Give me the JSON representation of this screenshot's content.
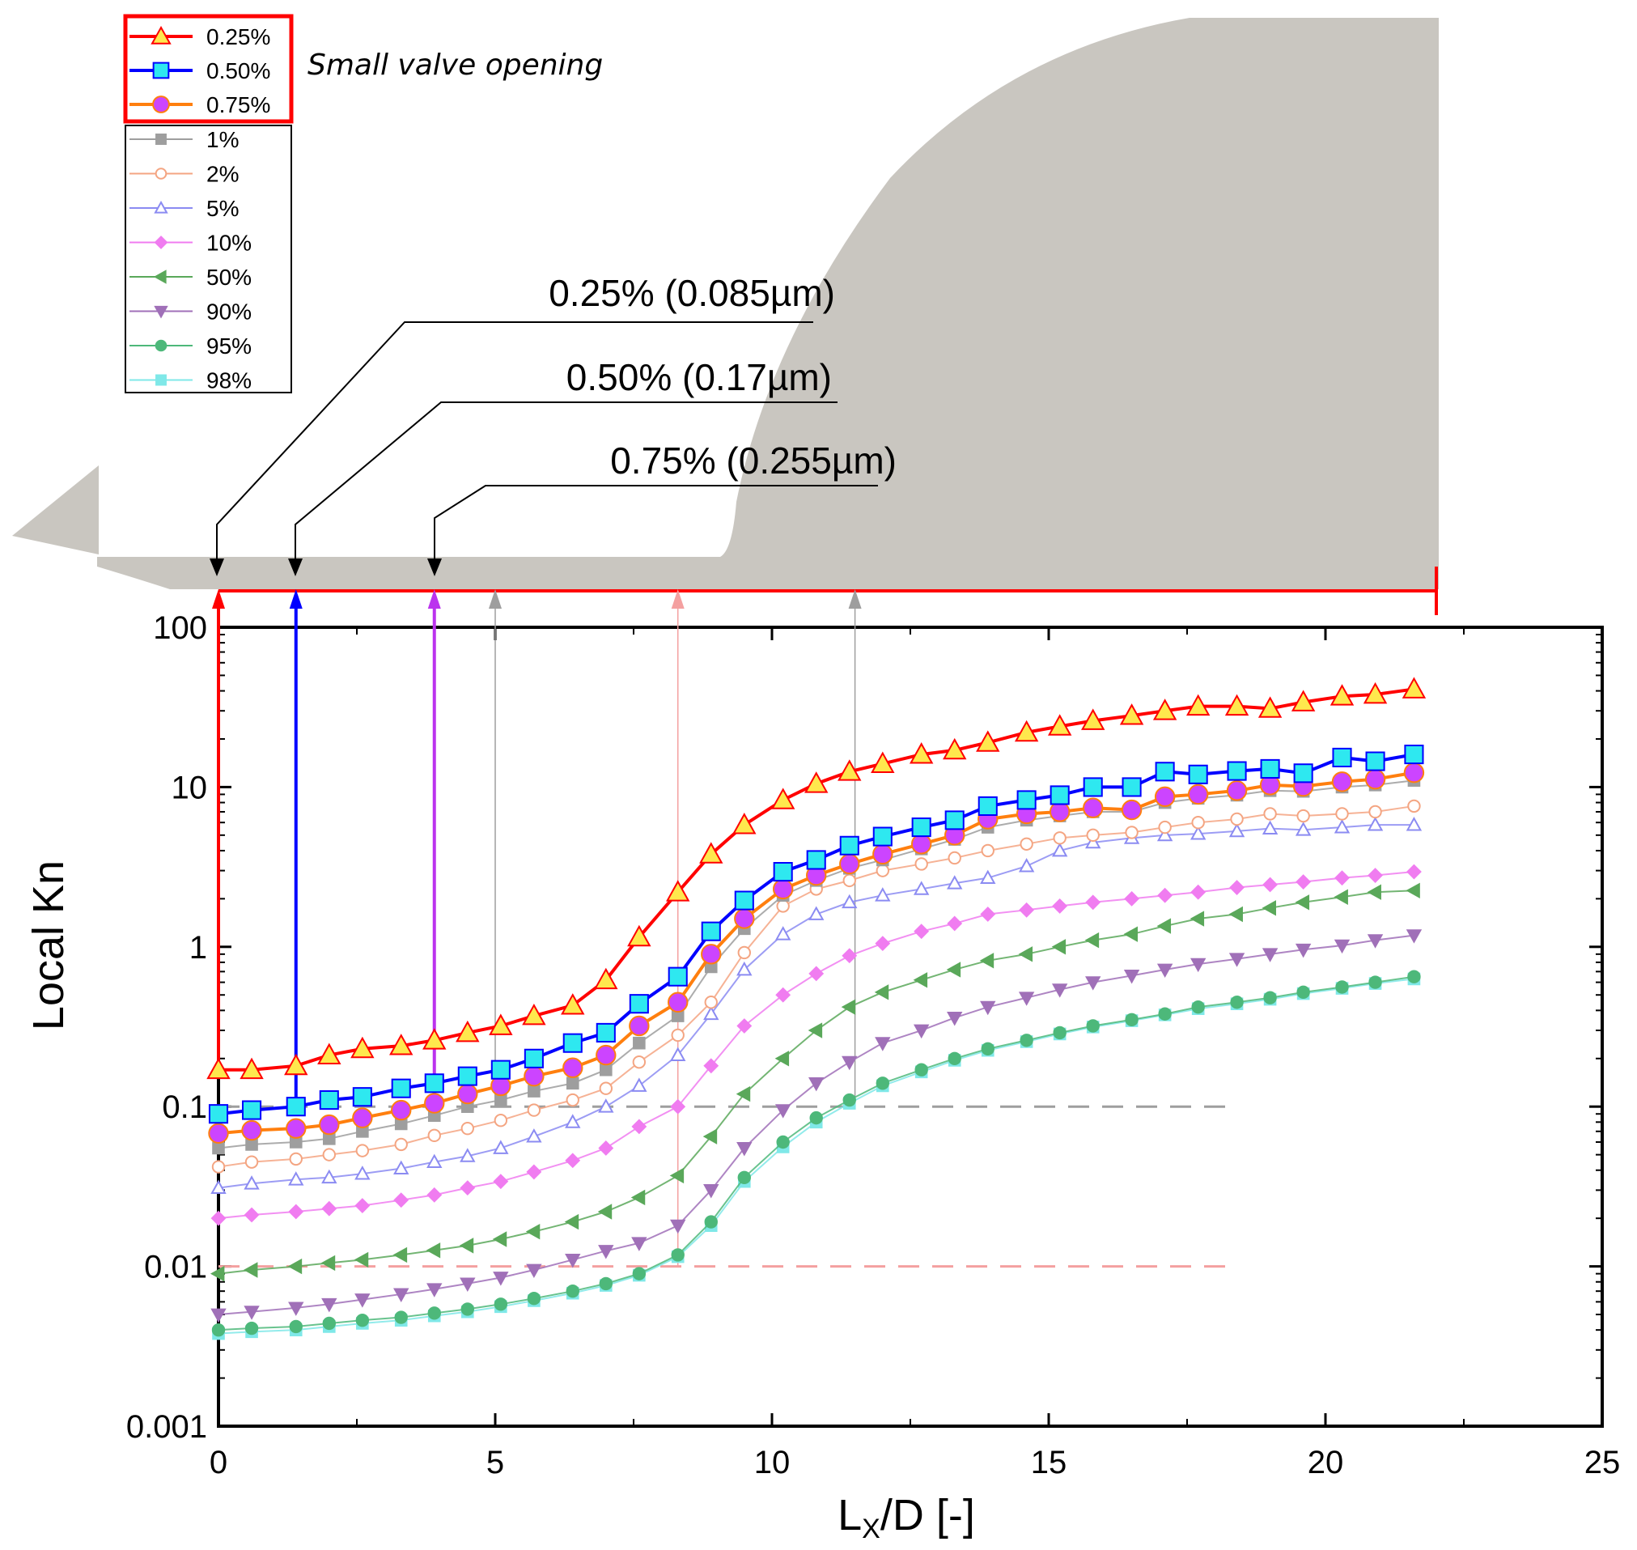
{
  "chart_data": {
    "type": "line",
    "title": "",
    "xlabel": "L",
    "xlabel_sub": "X",
    "xlabel_tail": "/D [-]",
    "ylabel": "Local Kn",
    "xlim": [
      0,
      25
    ],
    "ylim": [
      0.001,
      100
    ],
    "yscale": "log",
    "x_ticks": [
      "0",
      "5",
      "10",
      "15",
      "20",
      "25"
    ],
    "y_ticks": [
      "0.001",
      "0.01",
      "0.1",
      "1",
      "10",
      "100"
    ],
    "legend_position": "top-left",
    "annotation_note": "Small valve opening",
    "callouts": [
      {
        "label": "0.25% (0.085µm)",
        "x": 0.0
      },
      {
        "label": "0.50% (0.17µm)",
        "x": 1.4
      },
      {
        "label": "0.75% (0.255µm)",
        "x": 3.9
      }
    ],
    "threshold_lines": [
      {
        "y": 0.1,
        "x_range": [
          0,
          18.3
        ],
        "color": "#9e9e9e"
      },
      {
        "y": 0.01,
        "x_range": [
          0,
          18.3
        ],
        "color": "#f4a0a0"
      }
    ],
    "markers_x": [
      0,
      1.4,
      3.9,
      5.0,
      8.3,
      11.5
    ],
    "x_domain_end": 21.9,
    "series": [
      {
        "name": "0.25%",
        "color": "#ff0000",
        "fill": "#ffe84d",
        "marker": "triangle",
        "width": 4,
        "highlight": true,
        "x": [
          0,
          0.6,
          1.4,
          2,
          2.6,
          3.3,
          3.9,
          4.5,
          5.1,
          5.7,
          6.4,
          7,
          7.6,
          8.3,
          8.9,
          9.5,
          10.2,
          10.8,
          11.4,
          12,
          12.7,
          13.3,
          13.9,
          14.6,
          15.2,
          15.8,
          16.5,
          17.1,
          17.7,
          18.4,
          19,
          19.6,
          20.3,
          20.9,
          21.6
        ],
        "y": [
          0.17,
          0.17,
          0.18,
          0.21,
          0.23,
          0.24,
          0.26,
          0.29,
          0.32,
          0.37,
          0.43,
          0.62,
          1.15,
          2.2,
          3.8,
          5.8,
          8.3,
          10.5,
          12.5,
          14,
          16,
          17,
          19,
          22,
          24,
          26,
          28,
          30,
          32,
          32,
          31,
          34,
          37,
          38,
          41
        ]
      },
      {
        "name": "0.50%",
        "color": "#0000ff",
        "fill": "#2ee8f0",
        "marker": "square",
        "width": 4,
        "highlight": true,
        "x": [
          0,
          0.6,
          1.4,
          2,
          2.6,
          3.3,
          3.9,
          4.5,
          5.1,
          5.7,
          6.4,
          7,
          7.6,
          8.3,
          8.9,
          9.5,
          10.2,
          10.8,
          11.4,
          12,
          12.7,
          13.3,
          13.9,
          14.6,
          15.2,
          15.8,
          16.5,
          17.1,
          17.7,
          18.4,
          19,
          19.6,
          20.3,
          20.9,
          21.6
        ],
        "y": [
          0.09,
          0.095,
          0.1,
          0.11,
          0.115,
          0.13,
          0.14,
          0.155,
          0.17,
          0.2,
          0.25,
          0.29,
          0.44,
          0.65,
          1.25,
          1.95,
          2.95,
          3.5,
          4.3,
          4.9,
          5.6,
          6.2,
          7.6,
          8.3,
          8.9,
          10,
          10,
          12.5,
          12,
          12.6,
          13,
          12.2,
          15.3,
          14.5,
          16
        ]
      },
      {
        "name": "0.75%",
        "color": "#ff7f0e",
        "fill": "#cc44ff",
        "marker": "circle",
        "width": 4,
        "highlight": true,
        "x": [
          0,
          0.6,
          1.4,
          2,
          2.6,
          3.3,
          3.9,
          4.5,
          5.1,
          5.7,
          6.4,
          7,
          7.6,
          8.3,
          8.9,
          9.5,
          10.2,
          10.8,
          11.4,
          12,
          12.7,
          13.3,
          13.9,
          14.6,
          15.2,
          15.8,
          16.5,
          17.1,
          17.7,
          18.4,
          19,
          19.6,
          20.3,
          20.9,
          21.6
        ],
        "y": [
          0.068,
          0.071,
          0.073,
          0.077,
          0.085,
          0.095,
          0.105,
          0.12,
          0.135,
          0.155,
          0.175,
          0.21,
          0.32,
          0.45,
          0.9,
          1.5,
          2.3,
          2.8,
          3.3,
          3.8,
          4.4,
          5,
          6.3,
          6.8,
          7,
          7.4,
          7.2,
          8.7,
          9,
          9.5,
          10.3,
          10.1,
          10.8,
          11.2,
          12.3
        ]
      },
      {
        "name": "1%",
        "color": "#9e9e9e",
        "fill": "#9e9e9e",
        "marker": "square",
        "width": 2,
        "highlight": false,
        "x": [
          0,
          0.6,
          1.4,
          2,
          2.6,
          3.3,
          3.9,
          4.5,
          5.1,
          5.7,
          6.4,
          7,
          7.6,
          8.3,
          8.9,
          9.5,
          10.2,
          10.8,
          11.4,
          12,
          12.7,
          13.3,
          13.9,
          14.6,
          15.2,
          15.8,
          16.5,
          17.1,
          17.7,
          18.4,
          19,
          19.6,
          20.3,
          20.9,
          21.6
        ],
        "y": [
          0.055,
          0.058,
          0.06,
          0.063,
          0.07,
          0.078,
          0.088,
          0.1,
          0.11,
          0.125,
          0.14,
          0.17,
          0.25,
          0.37,
          0.75,
          1.3,
          2.1,
          2.6,
          3.1,
          3.5,
          4.1,
          4.7,
          5.6,
          6.2,
          6.6,
          7,
          7,
          8,
          8.5,
          8.9,
          9.5,
          9.4,
          10,
          10.3,
          11
        ]
      },
      {
        "name": "2%",
        "color": "#f4a582",
        "fill": "#ffffff",
        "marker": "circle-open",
        "width": 2,
        "highlight": false,
        "x": [
          0,
          0.6,
          1.4,
          2,
          2.6,
          3.3,
          3.9,
          4.5,
          5.1,
          5.7,
          6.4,
          7,
          7.6,
          8.3,
          8.9,
          9.5,
          10.2,
          10.8,
          11.4,
          12,
          12.7,
          13.3,
          13.9,
          14.6,
          15.2,
          15.8,
          16.5,
          17.1,
          17.7,
          18.4,
          19,
          19.6,
          20.3,
          20.9,
          21.6
        ],
        "y": [
          0.042,
          0.045,
          0.047,
          0.05,
          0.053,
          0.058,
          0.066,
          0.073,
          0.082,
          0.095,
          0.11,
          0.13,
          0.19,
          0.28,
          0.45,
          0.92,
          1.8,
          2.3,
          2.6,
          3,
          3.3,
          3.6,
          4,
          4.4,
          4.8,
          5,
          5.2,
          5.6,
          6,
          6.3,
          6.8,
          6.6,
          6.8,
          7,
          7.6
        ]
      },
      {
        "name": "5%",
        "color": "#8b8bf2",
        "fill": "#ffffff",
        "marker": "triangle-open",
        "width": 2,
        "highlight": false,
        "x": [
          0,
          0.6,
          1.4,
          2,
          2.6,
          3.3,
          3.9,
          4.5,
          5.1,
          5.7,
          6.4,
          7,
          7.6,
          8.3,
          8.9,
          9.5,
          10.2,
          10.8,
          11.4,
          12,
          12.7,
          13.3,
          13.9,
          14.6,
          15.2,
          15.8,
          16.5,
          17.1,
          17.7,
          18.4,
          19,
          19.6,
          20.3,
          20.9,
          21.6
        ],
        "y": [
          0.031,
          0.033,
          0.035,
          0.036,
          0.038,
          0.041,
          0.045,
          0.049,
          0.055,
          0.065,
          0.08,
          0.1,
          0.135,
          0.21,
          0.38,
          0.72,
          1.2,
          1.6,
          1.9,
          2.1,
          2.3,
          2.5,
          2.7,
          3.2,
          4,
          4.5,
          4.8,
          5,
          5.1,
          5.3,
          5.5,
          5.4,
          5.6,
          5.8,
          5.8
        ]
      },
      {
        "name": "10%",
        "color": "#f07cf0",
        "fill": "#f07cf0",
        "marker": "diamond",
        "width": 2,
        "highlight": false,
        "x": [
          0,
          0.6,
          1.4,
          2,
          2.6,
          3.3,
          3.9,
          4.5,
          5.1,
          5.7,
          6.4,
          7,
          7.6,
          8.3,
          8.9,
          9.5,
          10.2,
          10.8,
          11.4,
          12,
          12.7,
          13.3,
          13.9,
          14.6,
          15.2,
          15.8,
          16.5,
          17.1,
          17.7,
          18.4,
          19,
          19.6,
          20.3,
          20.9,
          21.6
        ],
        "y": [
          0.02,
          0.021,
          0.022,
          0.023,
          0.024,
          0.026,
          0.028,
          0.031,
          0.034,
          0.039,
          0.046,
          0.055,
          0.075,
          0.1,
          0.18,
          0.32,
          0.5,
          0.68,
          0.88,
          1.05,
          1.25,
          1.4,
          1.6,
          1.7,
          1.8,
          1.9,
          2,
          2.1,
          2.2,
          2.35,
          2.45,
          2.55,
          2.7,
          2.8,
          2.95
        ]
      },
      {
        "name": "50%",
        "color": "#5aa85a",
        "fill": "#5aa85a",
        "marker": "triangle-left",
        "width": 2,
        "highlight": false,
        "x": [
          0,
          0.6,
          1.4,
          2,
          2.6,
          3.3,
          3.9,
          4.5,
          5.1,
          5.7,
          6.4,
          7,
          7.6,
          8.3,
          8.9,
          9.5,
          10.2,
          10.8,
          11.4,
          12,
          12.7,
          13.3,
          13.9,
          14.6,
          15.2,
          15.8,
          16.5,
          17.1,
          17.7,
          18.4,
          19,
          19.6,
          20.3,
          20.9,
          21.6
        ],
        "y": [
          0.009,
          0.0095,
          0.01,
          0.0105,
          0.011,
          0.0118,
          0.0126,
          0.0135,
          0.0148,
          0.0165,
          0.019,
          0.022,
          0.027,
          0.037,
          0.065,
          0.12,
          0.2,
          0.3,
          0.42,
          0.52,
          0.62,
          0.72,
          0.82,
          0.9,
          1,
          1.1,
          1.2,
          1.35,
          1.5,
          1.6,
          1.75,
          1.9,
          2.05,
          2.2,
          2.25
        ]
      },
      {
        "name": "90%",
        "color": "#a070b8",
        "fill": "#a070b8",
        "marker": "triangle-down",
        "width": 2,
        "highlight": false,
        "x": [
          0,
          0.6,
          1.4,
          2,
          2.6,
          3.3,
          3.9,
          4.5,
          5.1,
          5.7,
          6.4,
          7,
          7.6,
          8.3,
          8.9,
          9.5,
          10.2,
          10.8,
          11.4,
          12,
          12.7,
          13.3,
          13.9,
          14.6,
          15.2,
          15.8,
          16.5,
          17.1,
          17.7,
          18.4,
          19,
          19.6,
          20.3,
          20.9,
          21.6
        ],
        "y": [
          0.005,
          0.0052,
          0.0055,
          0.0058,
          0.0062,
          0.0067,
          0.0072,
          0.0078,
          0.0085,
          0.0095,
          0.011,
          0.0125,
          0.014,
          0.018,
          0.03,
          0.055,
          0.095,
          0.14,
          0.19,
          0.25,
          0.3,
          0.36,
          0.42,
          0.48,
          0.54,
          0.6,
          0.66,
          0.72,
          0.78,
          0.84,
          0.9,
          0.96,
          1.02,
          1.1,
          1.18
        ]
      },
      {
        "name": "95%",
        "color": "#4db87a",
        "fill": "#4db87a",
        "marker": "circle",
        "width": 2,
        "highlight": false,
        "x": [
          0,
          0.6,
          1.4,
          2,
          2.6,
          3.3,
          3.9,
          4.5,
          5.1,
          5.7,
          6.4,
          7,
          7.6,
          8.3,
          8.9,
          9.5,
          10.2,
          10.8,
          11.4,
          12,
          12.7,
          13.3,
          13.9,
          14.6,
          15.2,
          15.8,
          16.5,
          17.1,
          17.7,
          18.4,
          19,
          19.6,
          20.3,
          20.9,
          21.6
        ],
        "y": [
          0.004,
          0.0041,
          0.0042,
          0.0044,
          0.0046,
          0.0048,
          0.0051,
          0.0054,
          0.0058,
          0.0063,
          0.007,
          0.0078,
          0.009,
          0.0118,
          0.019,
          0.036,
          0.06,
          0.085,
          0.11,
          0.14,
          0.17,
          0.2,
          0.23,
          0.26,
          0.29,
          0.32,
          0.35,
          0.38,
          0.42,
          0.45,
          0.48,
          0.52,
          0.56,
          0.6,
          0.65
        ]
      },
      {
        "name": "98%",
        "color": "#7fe8e8",
        "fill": "#7fe8e8",
        "marker": "square",
        "width": 2,
        "highlight": false,
        "x": [
          0,
          0.6,
          1.4,
          2,
          2.6,
          3.3,
          3.9,
          4.5,
          5.1,
          5.7,
          6.4,
          7,
          7.6,
          8.3,
          8.9,
          9.5,
          10.2,
          10.8,
          11.4,
          12,
          12.7,
          13.3,
          13.9,
          14.6,
          15.2,
          15.8,
          16.5,
          17.1,
          17.7,
          18.4,
          19,
          19.6,
          20.3,
          20.9,
          21.6
        ],
        "y": [
          0.0038,
          0.0039,
          0.004,
          0.0042,
          0.0044,
          0.0046,
          0.0049,
          0.0052,
          0.0056,
          0.0061,
          0.0068,
          0.0076,
          0.0088,
          0.0115,
          0.018,
          0.034,
          0.056,
          0.08,
          0.105,
          0.135,
          0.165,
          0.195,
          0.225,
          0.255,
          0.285,
          0.315,
          0.345,
          0.375,
          0.41,
          0.44,
          0.47,
          0.51,
          0.55,
          0.59,
          0.63
        ]
      }
    ]
  }
}
